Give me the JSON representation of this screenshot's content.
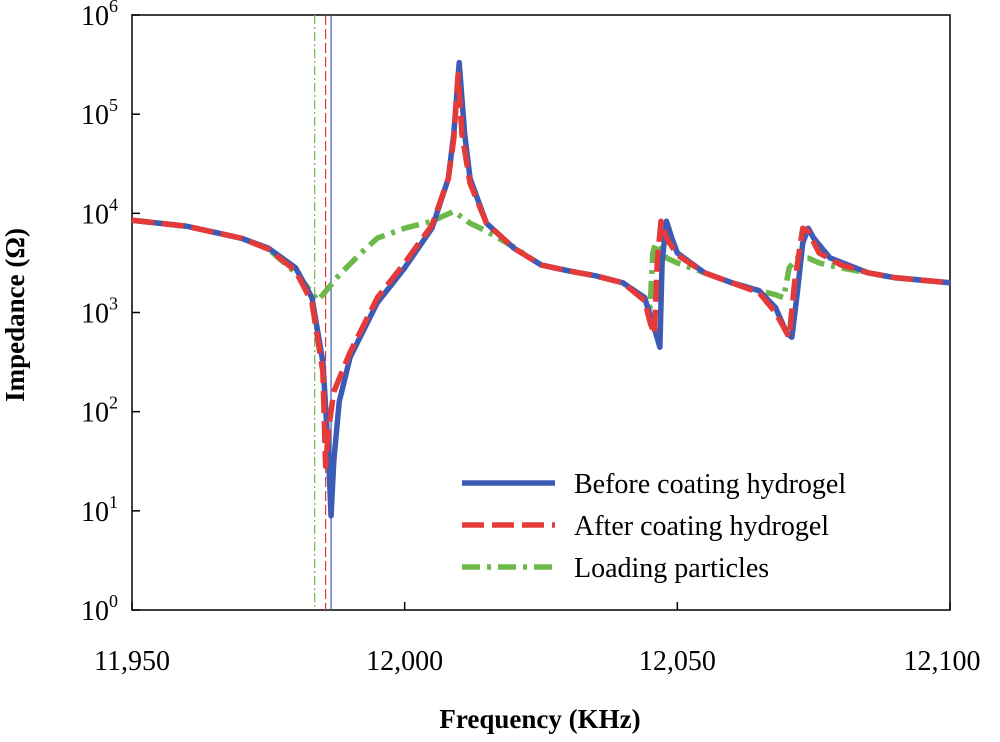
{
  "chart_data": {
    "type": "line",
    "title": "",
    "xlabel": "Frequency (KHz)",
    "ylabel": "Impedance (Ω)",
    "xlim": [
      11950,
      12100
    ],
    "ylim_log10": [
      0,
      6
    ],
    "y_scale": "log",
    "x_ticks": [
      {
        "value": 11950,
        "label": "11,950"
      },
      {
        "value": 12000,
        "label": "12,000"
      },
      {
        "value": 12050,
        "label": "12,050"
      },
      {
        "value": 12100,
        "label": "12,100"
      }
    ],
    "y_ticks": [
      {
        "value": 0,
        "base": "10",
        "exp": "0"
      },
      {
        "value": 1,
        "base": "10",
        "exp": "1"
      },
      {
        "value": 2,
        "base": "10",
        "exp": "2"
      },
      {
        "value": 3,
        "base": "10",
        "exp": "3"
      },
      {
        "value": 4,
        "base": "10",
        "exp": "4"
      },
      {
        "value": 5,
        "base": "10",
        "exp": "5"
      },
      {
        "value": 6,
        "base": "10",
        "exp": "6"
      }
    ],
    "legend_position": "bottom-right",
    "series": [
      {
        "name": "Before coating hydrogel",
        "color": "#3b5bb5",
        "dash": "solid",
        "markers": [
          11986.5
        ],
        "points": [
          [
            11950,
            3.93
          ],
          [
            11960,
            3.87
          ],
          [
            11970,
            3.75
          ],
          [
            11975,
            3.65
          ],
          [
            11980,
            3.45
          ],
          [
            11983,
            3.15
          ],
          [
            11985,
            2.5
          ],
          [
            11986,
            1.6
          ],
          [
            11986.5,
            0.95
          ],
          [
            11987,
            1.5
          ],
          [
            11988,
            2.1
          ],
          [
            11990,
            2.55
          ],
          [
            11995,
            3.1
          ],
          [
            12000,
            3.45
          ],
          [
            12005,
            3.85
          ],
          [
            12008,
            4.35
          ],
          [
            12009,
            4.8
          ],
          [
            12010,
            5.52
          ],
          [
            12011,
            4.8
          ],
          [
            12012,
            4.35
          ],
          [
            12015,
            3.9
          ],
          [
            12020,
            3.65
          ],
          [
            12025,
            3.48
          ],
          [
            12030,
            3.42
          ],
          [
            12035,
            3.37
          ],
          [
            12040,
            3.3
          ],
          [
            12044,
            3.15
          ],
          [
            12046,
            2.8
          ],
          [
            12046.8,
            2.65
          ],
          [
            12047.2,
            3.5
          ],
          [
            12048,
            3.92
          ],
          [
            12049,
            3.75
          ],
          [
            12050,
            3.6
          ],
          [
            12055,
            3.4
          ],
          [
            12060,
            3.3
          ],
          [
            12065,
            3.22
          ],
          [
            12068,
            3.05
          ],
          [
            12070,
            2.8
          ],
          [
            12071,
            2.75
          ],
          [
            12072,
            3.2
          ],
          [
            12073,
            3.7
          ],
          [
            12074,
            3.85
          ],
          [
            12075,
            3.75
          ],
          [
            12078,
            3.55
          ],
          [
            12085,
            3.4
          ],
          [
            12090,
            3.35
          ],
          [
            12100,
            3.3
          ]
        ]
      },
      {
        "name": "After coating hydrogel",
        "color": "#e53a3a",
        "dash": "long-dash",
        "markers": [
          11985.5
        ],
        "points": [
          [
            11950,
            3.93
          ],
          [
            11960,
            3.87
          ],
          [
            11970,
            3.75
          ],
          [
            11975,
            3.64
          ],
          [
            11980,
            3.42
          ],
          [
            11983,
            3.1
          ],
          [
            11985,
            2.4
          ],
          [
            11985.5,
            1.45
          ],
          [
            11986,
            1.8
          ],
          [
            11987,
            2.2
          ],
          [
            11990,
            2.6
          ],
          [
            11995,
            3.15
          ],
          [
            12000,
            3.5
          ],
          [
            12005,
            3.88
          ],
          [
            12008,
            4.35
          ],
          [
            12009,
            4.75
          ],
          [
            12009.8,
            5.4
          ],
          [
            12010.5,
            4.8
          ],
          [
            12012,
            4.3
          ],
          [
            12015,
            3.9
          ],
          [
            12020,
            3.65
          ],
          [
            12025,
            3.48
          ],
          [
            12030,
            3.42
          ],
          [
            12035,
            3.37
          ],
          [
            12040,
            3.3
          ],
          [
            12044,
            3.12
          ],
          [
            12045,
            2.9
          ],
          [
            12045.8,
            2.78
          ],
          [
            12046.3,
            3.5
          ],
          [
            12047,
            3.92
          ],
          [
            12048,
            3.75
          ],
          [
            12050,
            3.58
          ],
          [
            12055,
            3.4
          ],
          [
            12060,
            3.3
          ],
          [
            12065,
            3.2
          ],
          [
            12068,
            3.0
          ],
          [
            12070,
            2.8
          ],
          [
            12070.5,
            2.75
          ],
          [
            12071.5,
            3.3
          ],
          [
            12073,
            3.85
          ],
          [
            12074,
            3.82
          ],
          [
            12076,
            3.6
          ],
          [
            12080,
            3.48
          ],
          [
            12085,
            3.4
          ],
          [
            12090,
            3.35
          ],
          [
            12100,
            3.3
          ]
        ]
      },
      {
        "name": "Loading particles",
        "color": "#6cb84a",
        "dash": "dash-dot",
        "markers": [
          11983.5
        ],
        "points": [
          [
            11950,
            3.93
          ],
          [
            11960,
            3.87
          ],
          [
            11970,
            3.75
          ],
          [
            11975,
            3.64
          ],
          [
            11980,
            3.4
          ],
          [
            11983,
            3.2
          ],
          [
            11984,
            3.12
          ],
          [
            11985,
            3.18
          ],
          [
            11988,
            3.38
          ],
          [
            11992,
            3.6
          ],
          [
            11995,
            3.75
          ],
          [
            12000,
            3.85
          ],
          [
            12005,
            3.92
          ],
          [
            12009,
            4.02
          ],
          [
            12010,
            3.98
          ],
          [
            12012,
            3.9
          ],
          [
            12015,
            3.82
          ],
          [
            12020,
            3.66
          ],
          [
            12025,
            3.48
          ],
          [
            12030,
            3.42
          ],
          [
            12035,
            3.37
          ],
          [
            12040,
            3.3
          ],
          [
            12044,
            3.15
          ],
          [
            12045,
            3.05
          ],
          [
            12045.5,
            3.6
          ],
          [
            12046,
            3.7
          ],
          [
            12048,
            3.55
          ],
          [
            12050,
            3.5
          ],
          [
            12055,
            3.4
          ],
          [
            12060,
            3.3
          ],
          [
            12065,
            3.22
          ],
          [
            12068,
            3.18
          ],
          [
            12069.5,
            3.15
          ],
          [
            12070.5,
            3.45
          ],
          [
            12072,
            3.55
          ],
          [
            12074,
            3.55
          ],
          [
            12076,
            3.5
          ],
          [
            12080,
            3.45
          ],
          [
            12085,
            3.4
          ],
          [
            12090,
            3.35
          ],
          [
            12100,
            3.3
          ]
        ]
      }
    ]
  }
}
